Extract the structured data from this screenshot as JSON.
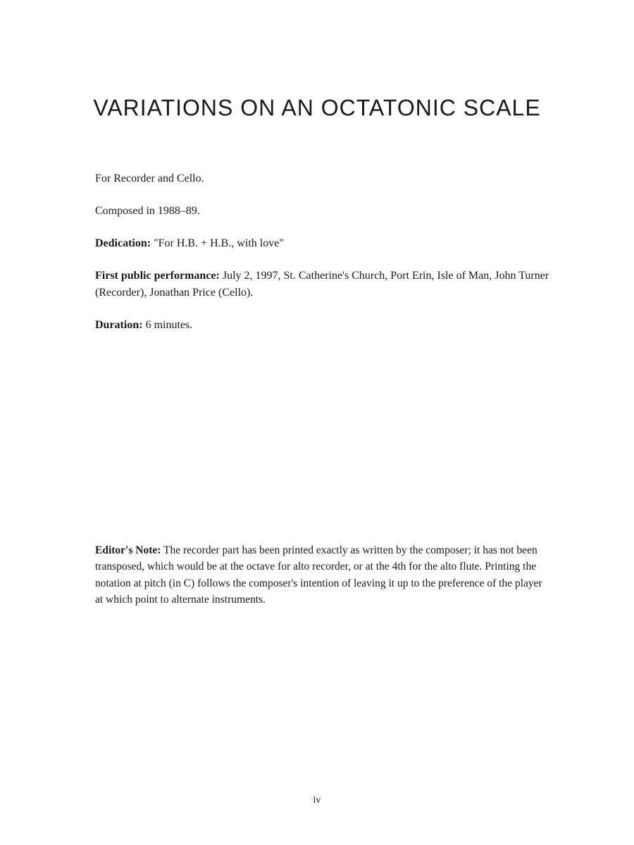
{
  "title": "VARIATIONS ON AN OCTATONIC SCALE",
  "instrumentation": "For Recorder and Cello.",
  "composed": "Composed in 1988–89.",
  "dedication": {
    "label": "Dedication:",
    "text": " \"For H.B. + H.B., with love\""
  },
  "first_performance": {
    "label": "First public performance:",
    "text": " July 2, 1997, St. Catherine's Church, Port Erin, Isle of Man, John Turner (Recorder), Jonathan Price (Cello)."
  },
  "duration": {
    "label": "Duration:",
    "text": " 6 minutes."
  },
  "editors_note": {
    "label": "Editor's Note:",
    "text": " The recorder part has been printed exactly as written by the composer; it has not been transposed, which would be at the octave for alto recorder, or at the 4th for the alto flute. Printing the notation at pitch (in C) follows the composer's intention of leaving it up to the preference of the player at which point to alternate instruments."
  },
  "page_number": "iv"
}
